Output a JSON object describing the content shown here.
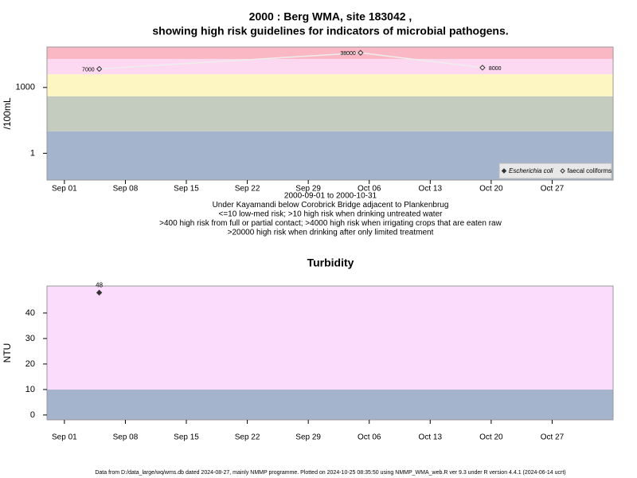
{
  "chart_data": [
    {
      "type": "scatter",
      "title": [
        "2000 : Berg WMA, site 183042 ,",
        "showing high risk guidelines for indicators of microbial pathogens."
      ],
      "y_label": "/100mL",
      "log_y": true,
      "xlim": [
        "2000-08-30",
        "2000-11-03"
      ],
      "xticks": [
        {
          "value": "2000-09-01",
          "label": "Sep 01"
        },
        {
          "value": "2000-09-08",
          "label": "Sep 08"
        },
        {
          "value": "2000-09-15",
          "label": "Sep 15"
        },
        {
          "value": "2000-09-22",
          "label": "Sep 22"
        },
        {
          "value": "2000-09-29",
          "label": "Sep 29"
        },
        {
          "value": "2000-10-06",
          "label": "Oct 06"
        },
        {
          "value": "2000-10-13",
          "label": "Oct 13"
        },
        {
          "value": "2000-10-20",
          "label": "Oct 20"
        },
        {
          "value": "2000-10-27",
          "label": "Oct 27"
        }
      ],
      "ylim": [
        0.06,
        70000
      ],
      "yticks": [
        1,
        1000
      ],
      "thresholds": [
        10,
        400,
        4000,
        20000
      ],
      "band_colors": [
        "#a3b4cc",
        "#c3ccbf",
        "#fdf6c3",
        "#fcd9f0",
        "#f9b8c4"
      ],
      "legend": "bottom-right",
      "series": [
        {
          "name": "Escherichia coli",
          "marker": "filled",
          "color": "#333333",
          "x": [],
          "values": []
        },
        {
          "name": "faecal coliforms",
          "marker": "open",
          "color": "#333333",
          "line_color": "#eeeeee",
          "x": [
            "2000-09-05",
            "2000-10-05",
            "2000-10-19"
          ],
          "values": [
            7000,
            38000,
            8000
          ]
        }
      ],
      "annotations": [
        "2000-09-01 to 2000-10-31",
        "Under Kayamandi below Corobrick Bridge adjacent to Plankenbrug",
        "<=10 low-med risk; >10 high risk when drinking untreated water",
        ">400 high risk from full or partial contact; >4000 high risk when irrigating crops that are eaten raw",
        ">20000 high risk when drinking after only limited treatment"
      ]
    },
    {
      "type": "scatter",
      "title": [
        "Turbidity"
      ],
      "y_label": "NTU",
      "log_y": false,
      "xlim": [
        "2000-08-30",
        "2000-11-03"
      ],
      "xticks": [
        {
          "value": "2000-09-01",
          "label": "Sep 01"
        },
        {
          "value": "2000-09-08",
          "label": "Sep 08"
        },
        {
          "value": "2000-09-15",
          "label": "Sep 15"
        },
        {
          "value": "2000-09-22",
          "label": "Sep 22"
        },
        {
          "value": "2000-09-29",
          "label": "Sep 29"
        },
        {
          "value": "2000-10-06",
          "label": "Oct 06"
        },
        {
          "value": "2000-10-13",
          "label": "Oct 13"
        },
        {
          "value": "2000-10-20",
          "label": "Oct 20"
        },
        {
          "value": "2000-10-27",
          "label": "Oct 27"
        }
      ],
      "ylim": [
        -1.9,
        50.6
      ],
      "yticks": [
        0,
        10,
        20,
        30,
        40
      ],
      "thresholds": [
        10
      ],
      "band_colors": [
        "#a3b4cc",
        "#fcdcfc"
      ],
      "series": [
        {
          "name": "Turbidity",
          "marker": "filled",
          "color": "#333333",
          "x": [
            "2000-09-05"
          ],
          "values": [
            48
          ]
        }
      ]
    }
  ],
  "footer": "Data from D:/data_large/wq/wms.db dated 2024-08-27, mainly NMMP programme. Plotted on 2024-10-25 08:35:50 using NMMP_WMA_web.R ver 9.3 under R version 4.4.1 (2024-06-14 ucrt)"
}
